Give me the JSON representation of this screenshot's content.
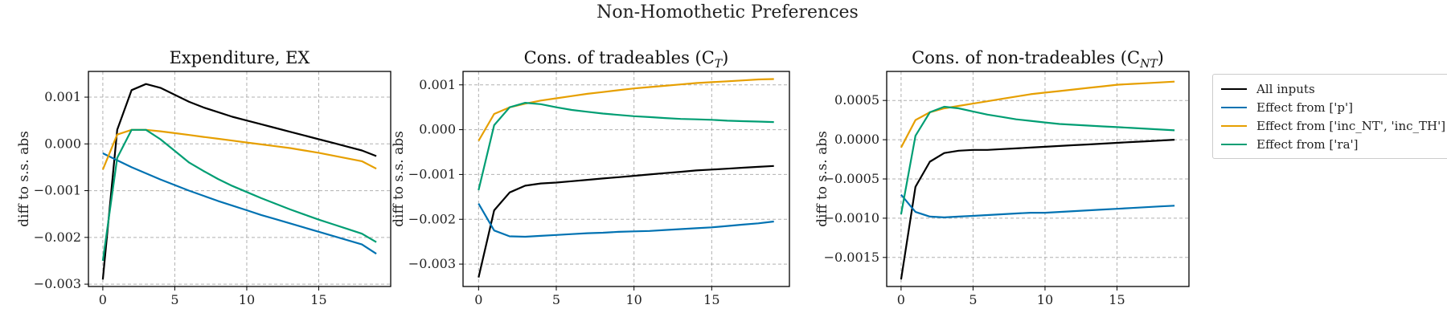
{
  "figure": {
    "suptitle": "Non-Homothetic Preferences"
  },
  "legend": {
    "placement": "right, outside",
    "entries": [
      {
        "label": "All inputs",
        "color": "#000000"
      },
      {
        "label": "Effect from ['p']",
        "color": "#0072B2"
      },
      {
        "label": "Effect from ['inc_NT', 'inc_TH']",
        "color": "#E69F00"
      },
      {
        "label": "Effect from ['ra']",
        "color": "#009E73"
      }
    ]
  },
  "chart_data": [
    {
      "type": "line",
      "title": "Expenditure, EX",
      "xlabel": "",
      "ylabel": "diff to s.s. abs",
      "grid": true,
      "xlim": [
        -1,
        20
      ],
      "ylim": [
        -0.00305,
        0.00155
      ],
      "xticks": [
        0,
        5,
        10,
        15
      ],
      "xtick_labels": [
        "0",
        "5",
        "10",
        "15"
      ],
      "yticks": [
        0.001,
        0.0,
        -0.001,
        -0.002,
        -0.003
      ],
      "ytick_labels": [
        "0.001",
        "0.000",
        "−0.001",
        "−0.002",
        "−0.003"
      ],
      "x": [
        0,
        1,
        2,
        3,
        4,
        5,
        6,
        7,
        8,
        9,
        10,
        11,
        12,
        13,
        14,
        15,
        16,
        17,
        18,
        19
      ],
      "series": [
        {
          "name": "All inputs",
          "color": "#000000",
          "values": [
            -0.0029,
            0.0003,
            0.00115,
            0.00128,
            0.0012,
            0.00105,
            0.0009,
            0.00078,
            0.00068,
            0.00058,
            0.0005,
            0.00042,
            0.00034,
            0.00026,
            0.00018,
            0.0001,
            2e-05,
            -6e-05,
            -0.00014,
            -0.00026
          ]
        },
        {
          "name": "Effect from ['p']",
          "color": "#0072B2",
          "values": [
            -0.0002,
            -0.00035,
            -0.0005,
            -0.00063,
            -0.00076,
            -0.00088,
            -0.001,
            -0.00111,
            -0.00122,
            -0.00132,
            -0.00142,
            -0.00152,
            -0.00161,
            -0.0017,
            -0.00179,
            -0.00188,
            -0.00197,
            -0.00206,
            -0.00215,
            -0.00235
          ]
        },
        {
          "name": "Effect from ['inc_NT', 'inc_TH']",
          "color": "#E69F00",
          "values": [
            -0.00055,
            0.0002,
            0.0003,
            0.0003,
            0.00027,
            0.00023,
            0.00019,
            0.00015,
            0.00011,
            7e-05,
            3e-05,
            -1e-05,
            -5e-05,
            -9e-05,
            -0.00014,
            -0.00019,
            -0.00025,
            -0.00031,
            -0.00037,
            -0.00053
          ]
        },
        {
          "name": "Effect from ['ra']",
          "color": "#009E73",
          "values": [
            -0.0025,
            -0.0003,
            0.0003,
            0.0003,
            0.0001,
            -0.00015,
            -0.0004,
            -0.00058,
            -0.00075,
            -0.0009,
            -0.00103,
            -0.00116,
            -0.00128,
            -0.0014,
            -0.00151,
            -0.00162,
            -0.00172,
            -0.00182,
            -0.00192,
            -0.0021
          ]
        }
      ]
    },
    {
      "type": "line",
      "title": "Cons. of tradeables (C",
      "title_subscript": "T",
      "title_suffix": ")",
      "xlabel": "",
      "ylabel": "diff to s.s. abs",
      "grid": true,
      "xlim": [
        -1,
        20
      ],
      "ylim": [
        -0.0035,
        0.0013
      ],
      "xticks": [
        0,
        5,
        10,
        15
      ],
      "xtick_labels": [
        "0",
        "5",
        "10",
        "15"
      ],
      "yticks": [
        0.001,
        0.0,
        -0.001,
        -0.002,
        -0.003
      ],
      "ytick_labels": [
        "0.001",
        "0.000",
        "−0.001",
        "−0.002",
        "−0.003"
      ],
      "x": [
        0,
        1,
        2,
        3,
        4,
        5,
        6,
        7,
        8,
        9,
        10,
        11,
        12,
        13,
        14,
        15,
        16,
        17,
        18,
        19
      ],
      "series": [
        {
          "name": "All inputs",
          "color": "#000000",
          "values": [
            -0.0033,
            -0.0018,
            -0.0014,
            -0.00125,
            -0.0012,
            -0.00118,
            -0.00115,
            -0.00112,
            -0.00109,
            -0.00106,
            -0.00103,
            -0.001,
            -0.00097,
            -0.00094,
            -0.00091,
            -0.00089,
            -0.00087,
            -0.00085,
            -0.00083,
            -0.00081
          ]
        },
        {
          "name": "Effect from ['p']",
          "color": "#0072B2",
          "values": [
            -0.00165,
            -0.00225,
            -0.00238,
            -0.00239,
            -0.00237,
            -0.00235,
            -0.00233,
            -0.00231,
            -0.0023,
            -0.00228,
            -0.00227,
            -0.00226,
            -0.00224,
            -0.00222,
            -0.0022,
            -0.00218,
            -0.00215,
            -0.00212,
            -0.00209,
            -0.00205
          ]
        },
        {
          "name": "Effect from ['inc_NT', 'inc_TH']",
          "color": "#E69F00",
          "values": [
            -0.00025,
            0.00035,
            0.0005,
            0.00058,
            0.00065,
            0.0007,
            0.00075,
            0.0008,
            0.00084,
            0.00088,
            0.00092,
            0.00095,
            0.00098,
            0.00101,
            0.00104,
            0.00106,
            0.00108,
            0.0011,
            0.00112,
            0.00113
          ]
        },
        {
          "name": "Effect from ['ra']",
          "color": "#009E73",
          "values": [
            -0.00135,
            0.0001,
            0.0005,
            0.0006,
            0.00057,
            0.0005,
            0.00044,
            0.0004,
            0.00036,
            0.00033,
            0.0003,
            0.00028,
            0.00026,
            0.00024,
            0.00023,
            0.00022,
            0.0002,
            0.00019,
            0.00018,
            0.00017
          ]
        }
      ]
    },
    {
      "type": "line",
      "title": "Cons. of non-tradeables (C",
      "title_subscript": "NT",
      "title_suffix": ")",
      "xlabel": "",
      "ylabel": "diff to s.s. abs",
      "grid": true,
      "xlim": [
        -1,
        20
      ],
      "ylim": [
        -0.00187,
        0.00087
      ],
      "xticks": [
        0,
        5,
        10,
        15
      ],
      "xtick_labels": [
        "0",
        "5",
        "10",
        "15"
      ],
      "yticks": [
        0.0005,
        0.0,
        -0.0005,
        -0.001,
        -0.0015
      ],
      "ytick_labels": [
        "0.0005",
        "0.0000",
        "−0.0005",
        "−0.0010",
        "−0.0015"
      ],
      "x": [
        0,
        1,
        2,
        3,
        4,
        5,
        6,
        7,
        8,
        9,
        10,
        11,
        12,
        13,
        14,
        15,
        16,
        17,
        18,
        19
      ],
      "series": [
        {
          "name": "All inputs",
          "color": "#000000",
          "values": [
            -0.00178,
            -0.0006,
            -0.00028,
            -0.00017,
            -0.00014,
            -0.00013,
            -0.00013,
            -0.00012,
            -0.00011,
            -0.0001,
            -9e-05,
            -8e-05,
            -7e-05,
            -6e-05,
            -5e-05,
            -4e-05,
            -3e-05,
            -2e-05,
            -1e-05,
            0.0
          ]
        },
        {
          "name": "Effect from ['p']",
          "color": "#0072B2",
          "values": [
            -0.0007,
            -0.00092,
            -0.00098,
            -0.00099,
            -0.00098,
            -0.00097,
            -0.00096,
            -0.00095,
            -0.00094,
            -0.00093,
            -0.00093,
            -0.00092,
            -0.00091,
            -0.0009,
            -0.00089,
            -0.00088,
            -0.00087,
            -0.00086,
            -0.00085,
            -0.00084
          ]
        },
        {
          "name": "Effect from ['inc_NT', 'inc_TH']",
          "color": "#E69F00",
          "values": [
            -0.0001,
            0.00025,
            0.00035,
            0.0004,
            0.00043,
            0.00046,
            0.00049,
            0.00052,
            0.00055,
            0.00058,
            0.0006,
            0.00062,
            0.00064,
            0.00066,
            0.00068,
            0.0007,
            0.00071,
            0.00072,
            0.00073,
            0.00074
          ]
        },
        {
          "name": "Effect from ['ra']",
          "color": "#009E73",
          "values": [
            -0.00095,
            5e-05,
            0.00035,
            0.00042,
            0.0004,
            0.00036,
            0.00032,
            0.00029,
            0.00026,
            0.00024,
            0.00022,
            0.0002,
            0.00019,
            0.00018,
            0.00017,
            0.00016,
            0.00015,
            0.00014,
            0.00013,
            0.00012
          ]
        }
      ]
    }
  ]
}
